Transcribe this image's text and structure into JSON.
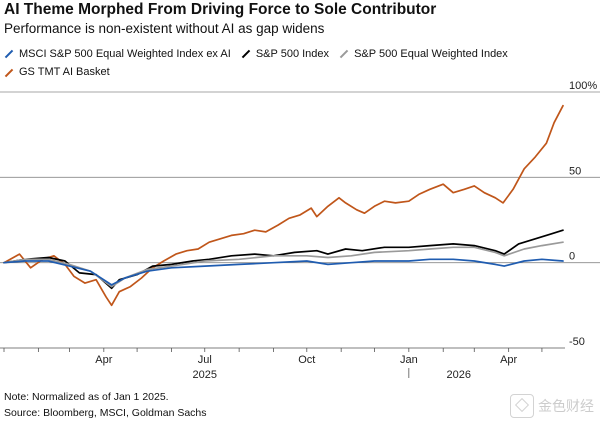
{
  "chart": {
    "title": "AI Theme Morphed From Driving Force to Sole Contributor",
    "subtitle": "Performance is non-existent without AI as gap widens"
  },
  "legend": [
    {
      "label": "MSCI S&P 500 Equal Weighted Index ex AI",
      "color": "#1f5cb0"
    },
    {
      "label": "S&P 500 Index",
      "color": "#000000"
    },
    {
      "label": "S&P 500 Equal Weighted Index",
      "color": "#9a9a9a"
    },
    {
      "label": "GS TMT AI Basket",
      "color": "#c0561a"
    }
  ],
  "footer": {
    "note": "Note: Normalized as of Jan 1 2025.",
    "source": "Source: Bloomberg, MSCI, Goldman Sachs"
  },
  "watermark": "金色财经",
  "chart_data": {
    "type": "line",
    "title": "AI Theme Morphed From Driving Force to Sole Contributor",
    "subtitle": "Performance is non-existent without AI as gap widens",
    "xlabel": "",
    "ylabel": "",
    "ylim": [
      -50,
      100
    ],
    "xlim": [
      "2025-01-01",
      "2026-05-20"
    ],
    "y_ticks": [
      {
        "value": 100,
        "label": "100%"
      },
      {
        "value": 50,
        "label": "50"
      },
      {
        "value": 0,
        "label": "0"
      },
      {
        "value": -50,
        "label": "-50"
      }
    ],
    "x_ticks": [
      {
        "date": "2025-04-01",
        "label": "Apr"
      },
      {
        "date": "2025-07-01",
        "label": "Jul"
      },
      {
        "date": "2025-10-01",
        "label": "Oct"
      },
      {
        "date": "2026-01-01",
        "label": "Jan"
      },
      {
        "date": "2026-04-01",
        "label": "Apr"
      }
    ],
    "year_labels": [
      {
        "date": "2025-07-01",
        "label": "2025"
      },
      {
        "date": "2026-02-15",
        "label": "2026"
      }
    ],
    "gridlines": [
      100,
      50,
      0
    ],
    "legend_position": "top-left",
    "series": [
      {
        "name": "GS TMT AI Basket",
        "color": "#c0561a",
        "points": [
          [
            "2025-01-01",
            0
          ],
          [
            "2025-01-15",
            5
          ],
          [
            "2025-01-25",
            -3
          ],
          [
            "2025-02-05",
            2
          ],
          [
            "2025-02-15",
            4
          ],
          [
            "2025-02-25",
            -1
          ],
          [
            "2025-03-05",
            -8
          ],
          [
            "2025-03-15",
            -12
          ],
          [
            "2025-03-25",
            -10
          ],
          [
            "2025-04-03",
            -20
          ],
          [
            "2025-04-08",
            -25
          ],
          [
            "2025-04-15",
            -17
          ],
          [
            "2025-04-25",
            -14
          ],
          [
            "2025-05-05",
            -9
          ],
          [
            "2025-05-15",
            -3
          ],
          [
            "2025-05-25",
            1
          ],
          [
            "2025-06-05",
            5
          ],
          [
            "2025-06-15",
            7
          ],
          [
            "2025-06-25",
            8
          ],
          [
            "2025-07-05",
            12
          ],
          [
            "2025-07-15",
            14
          ],
          [
            "2025-07-25",
            16
          ],
          [
            "2025-08-05",
            17
          ],
          [
            "2025-08-15",
            19
          ],
          [
            "2025-08-25",
            18
          ],
          [
            "2025-09-05",
            22
          ],
          [
            "2025-09-15",
            26
          ],
          [
            "2025-09-25",
            28
          ],
          [
            "2025-10-05",
            32
          ],
          [
            "2025-10-10",
            27
          ],
          [
            "2025-10-20",
            33
          ],
          [
            "2025-10-30",
            38
          ],
          [
            "2025-11-05",
            35
          ],
          [
            "2025-11-15",
            31
          ],
          [
            "2025-11-22",
            29
          ],
          [
            "2025-12-01",
            33
          ],
          [
            "2025-12-10",
            36
          ],
          [
            "2025-12-20",
            35
          ],
          [
            "2026-01-01",
            36
          ],
          [
            "2026-01-10",
            40
          ],
          [
            "2026-01-20",
            43
          ],
          [
            "2026-02-01",
            46
          ],
          [
            "2026-02-10",
            41
          ],
          [
            "2026-02-20",
            43
          ],
          [
            "2026-03-01",
            45
          ],
          [
            "2026-03-10",
            41
          ],
          [
            "2026-03-20",
            38
          ],
          [
            "2026-03-27",
            35
          ],
          [
            "2026-04-05",
            43
          ],
          [
            "2026-04-15",
            55
          ],
          [
            "2026-04-25",
            62
          ],
          [
            "2026-05-05",
            70
          ],
          [
            "2026-05-12",
            82
          ],
          [
            "2026-05-20",
            92
          ]
        ]
      },
      {
        "name": "S&P 500 Index",
        "color": "#000000",
        "points": [
          [
            "2025-01-01",
            0
          ],
          [
            "2025-01-20",
            2
          ],
          [
            "2025-02-10",
            3
          ],
          [
            "2025-02-25",
            1
          ],
          [
            "2025-03-10",
            -6
          ],
          [
            "2025-03-25",
            -7
          ],
          [
            "2025-04-08",
            -15
          ],
          [
            "2025-04-15",
            -10
          ],
          [
            "2025-05-01",
            -7
          ],
          [
            "2025-05-15",
            -2
          ],
          [
            "2025-06-01",
            -1
          ],
          [
            "2025-06-20",
            1
          ],
          [
            "2025-07-05",
            2
          ],
          [
            "2025-07-25",
            4
          ],
          [
            "2025-08-15",
            5
          ],
          [
            "2025-09-01",
            4
          ],
          [
            "2025-09-20",
            6
          ],
          [
            "2025-10-10",
            7
          ],
          [
            "2025-10-20",
            5
          ],
          [
            "2025-11-05",
            8
          ],
          [
            "2025-11-20",
            7
          ],
          [
            "2025-12-10",
            9
          ],
          [
            "2026-01-01",
            9
          ],
          [
            "2026-01-20",
            10
          ],
          [
            "2026-02-10",
            11
          ],
          [
            "2026-03-01",
            10
          ],
          [
            "2026-03-20",
            7
          ],
          [
            "2026-03-28",
            5
          ],
          [
            "2026-04-10",
            11
          ],
          [
            "2026-04-25",
            14
          ],
          [
            "2026-05-10",
            17
          ],
          [
            "2026-05-20",
            19
          ]
        ]
      },
      {
        "name": "S&P 500 Equal Weighted Index",
        "color": "#9a9a9a",
        "points": [
          [
            "2025-01-01",
            0
          ],
          [
            "2025-01-20",
            2
          ],
          [
            "2025-02-10",
            2
          ],
          [
            "2025-03-01",
            -1
          ],
          [
            "2025-03-20",
            -5
          ],
          [
            "2025-04-08",
            -14
          ],
          [
            "2025-04-20",
            -9
          ],
          [
            "2025-05-10",
            -4
          ],
          [
            "2025-06-01",
            -2
          ],
          [
            "2025-07-01",
            1
          ],
          [
            "2025-08-01",
            2
          ],
          [
            "2025-09-01",
            4
          ],
          [
            "2025-10-01",
            4
          ],
          [
            "2025-10-20",
            3
          ],
          [
            "2025-11-10",
            4
          ],
          [
            "2025-12-01",
            6
          ],
          [
            "2026-01-01",
            7
          ],
          [
            "2026-01-20",
            8
          ],
          [
            "2026-02-10",
            9
          ],
          [
            "2026-03-01",
            9
          ],
          [
            "2026-03-20",
            6
          ],
          [
            "2026-03-28",
            4
          ],
          [
            "2026-04-15",
            8
          ],
          [
            "2026-05-01",
            10
          ],
          [
            "2026-05-20",
            12
          ]
        ]
      },
      {
        "name": "MSCI S&P 500 Equal Weighted Index ex AI",
        "color": "#1f5cb0",
        "points": [
          [
            "2025-01-01",
            0
          ],
          [
            "2025-01-20",
            1
          ],
          [
            "2025-02-10",
            1
          ],
          [
            "2025-03-01",
            -2
          ],
          [
            "2025-03-20",
            -5
          ],
          [
            "2025-04-08",
            -13
          ],
          [
            "2025-04-20",
            -9
          ],
          [
            "2025-05-10",
            -5
          ],
          [
            "2025-06-01",
            -3
          ],
          [
            "2025-07-01",
            -2
          ],
          [
            "2025-08-01",
            -1
          ],
          [
            "2025-09-01",
            0
          ],
          [
            "2025-10-01",
            1
          ],
          [
            "2025-10-20",
            -1
          ],
          [
            "2025-11-10",
            0
          ],
          [
            "2025-12-01",
            1
          ],
          [
            "2026-01-01",
            1
          ],
          [
            "2026-01-20",
            2
          ],
          [
            "2026-02-10",
            2
          ],
          [
            "2026-03-01",
            1
          ],
          [
            "2026-03-20",
            -1
          ],
          [
            "2026-03-28",
            -2
          ],
          [
            "2026-04-15",
            1
          ],
          [
            "2026-05-01",
            2
          ],
          [
            "2026-05-20",
            1
          ]
        ]
      }
    ]
  }
}
